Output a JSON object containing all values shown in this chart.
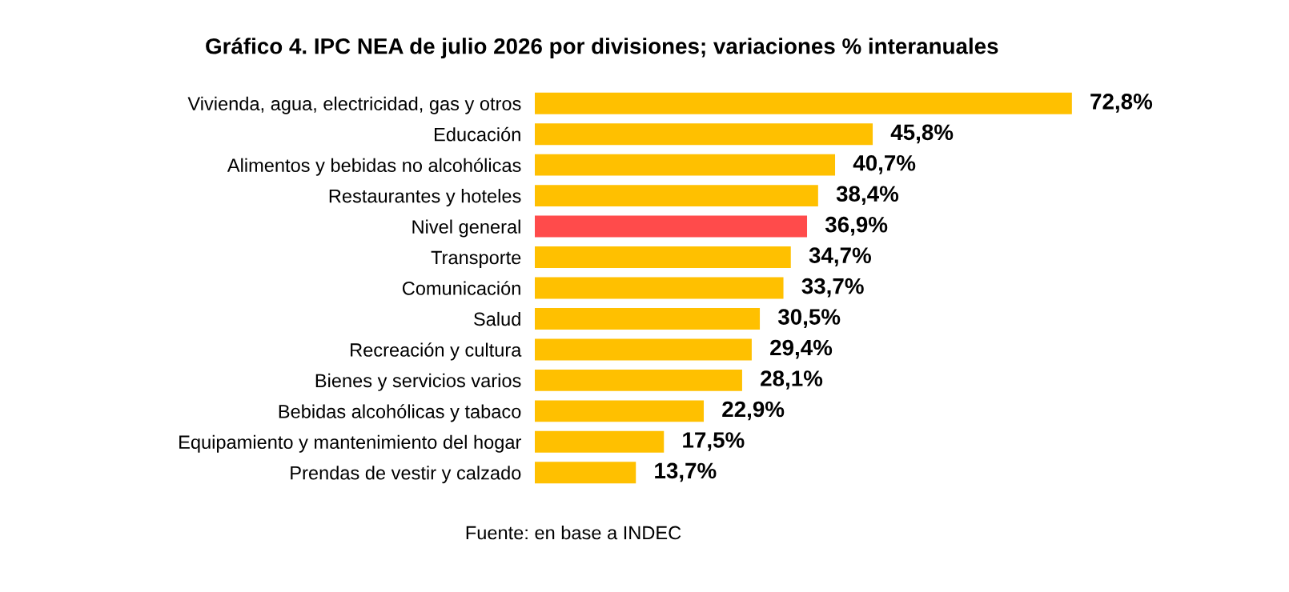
{
  "chart_data": {
    "type": "bar",
    "orientation": "horizontal",
    "title": "Gráfico 4. IPC NEA de julio 2026 por divisiones; variaciones % interanuales",
    "categories": [
      "Vivienda, agua, electricidad, gas y otros",
      "Educación",
      "Alimentos y bebidas no alcohólicas",
      "Restaurantes y hoteles",
      "Nivel general",
      "Transporte",
      "Comunicación",
      "Salud",
      "Recreación y cultura",
      "Bienes y servicios varios",
      "Bebidas alcohólicas y tabaco",
      "Equipamiento y mantenimiento del hogar",
      "Prendas de vestir y calzado"
    ],
    "values": [
      72.8,
      45.8,
      40.7,
      38.4,
      36.9,
      34.7,
      33.7,
      30.5,
      29.4,
      28.1,
      22.9,
      17.5,
      13.7
    ],
    "colors": [
      "#ffc000",
      "#ffc000",
      "#ffc000",
      "#ffc000",
      "#ff4b4b",
      "#ffc000",
      "#ffc000",
      "#ffc000",
      "#ffc000",
      "#ffc000",
      "#ffc000",
      "#ffc000",
      "#ffc000"
    ],
    "value_labels": [
      "72,8%",
      "45,8%",
      "40,7%",
      "38,4%",
      "36,9%",
      "34,7%",
      "33,7%",
      "30,5%",
      "29,4%",
      "28,1%",
      "22,9%",
      "17,5%",
      "13,7%"
    ],
    "grid": false,
    "legend": false,
    "annotations": [
      "Fuente: en base a INDEC"
    ]
  }
}
